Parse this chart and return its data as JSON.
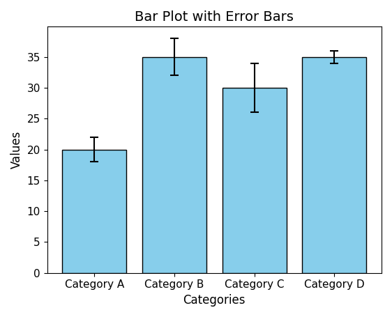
{
  "categories": [
    "Category A",
    "Category B",
    "Category C",
    "Category D"
  ],
  "values": [
    20,
    35,
    30,
    35
  ],
  "errors": [
    2,
    3,
    4,
    1
  ],
  "bar_color": "#87CEEB",
  "bar_edgecolor": "black",
  "title": "Bar Plot with Error Bars",
  "xlabel": "Categories",
  "ylabel": "Values",
  "title_fontsize": 14,
  "label_fontsize": 12,
  "tick_fontsize": 11,
  "ecolor": "black",
  "capsize": 4,
  "bar_width": 0.8
}
